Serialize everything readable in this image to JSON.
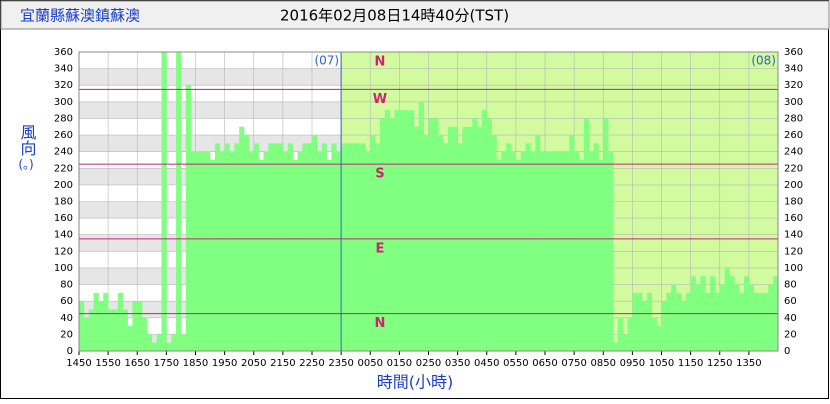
{
  "chart_data": {
    "type": "bar",
    "station": "宜蘭縣蘇澳鎮蘇澳",
    "title": "2016年02月08日14時40分(TST)",
    "y_label": "風向",
    "y_unit": "(。)",
    "x_label": "時間(小時)",
    "day_labels": [
      "(07)",
      "(08)"
    ],
    "color": "#80ff80",
    "ylim": [
      0,
      360
    ],
    "yticks": [
      0,
      20,
      40,
      60,
      80,
      100,
      120,
      140,
      160,
      180,
      200,
      220,
      240,
      260,
      280,
      300,
      320,
      340,
      360
    ],
    "grid": true,
    "compass_lines": [
      {
        "value": 360,
        "label": "N"
      },
      {
        "value": 315,
        "label": "W"
      },
      {
        "value": 225,
        "label": "S"
      },
      {
        "value": 135,
        "label": "E"
      },
      {
        "value": 45,
        "label": "N"
      }
    ],
    "categories": [
      "1450",
      null,
      null,
      null,
      null,
      null,
      "1550",
      null,
      null,
      null,
      null,
      null,
      "1650",
      null,
      null,
      null,
      null,
      null,
      "1750",
      null,
      null,
      null,
      null,
      null,
      "1850",
      null,
      null,
      null,
      null,
      null,
      "1950",
      null,
      null,
      null,
      null,
      null,
      "2050",
      null,
      null,
      null,
      null,
      null,
      "2150",
      null,
      null,
      null,
      null,
      null,
      "2250",
      null,
      null,
      null,
      null,
      null,
      "2350",
      null,
      null,
      null,
      null,
      null,
      "0050",
      null,
      null,
      null,
      null,
      null,
      "0150",
      null,
      null,
      null,
      null,
      null,
      "0250",
      null,
      null,
      null,
      null,
      null,
      "0350",
      null,
      null,
      null,
      null,
      null,
      "0450",
      null,
      null,
      null,
      null,
      null,
      "0550",
      null,
      null,
      null,
      null,
      null,
      "0650",
      null,
      null,
      null,
      null,
      null,
      "0750",
      null,
      null,
      null,
      null,
      null,
      "0850",
      null,
      null,
      null,
      null,
      null,
      "0950",
      null,
      null,
      null,
      null,
      null,
      "1050",
      null,
      null,
      null,
      null,
      null,
      "1150",
      null,
      null,
      null,
      null,
      null,
      "1250",
      null,
      null,
      null,
      null,
      null,
      "1350",
      null,
      null,
      null,
      null,
      null
    ],
    "values": [
      60,
      40,
      50,
      70,
      60,
      70,
      50,
      50,
      70,
      50,
      30,
      60,
      60,
      40,
      20,
      10,
      20,
      360,
      10,
      20,
      360,
      20,
      320,
      240,
      240,
      240,
      240,
      230,
      250,
      240,
      250,
      240,
      250,
      270,
      260,
      240,
      250,
      230,
      240,
      250,
      250,
      250,
      240,
      250,
      230,
      240,
      250,
      250,
      260,
      240,
      250,
      230,
      250,
      240,
      250,
      250,
      250,
      250,
      250,
      240,
      260,
      250,
      280,
      290,
      280,
      290,
      290,
      290,
      290,
      270,
      300,
      260,
      280,
      280,
      260,
      250,
      270,
      270,
      250,
      270,
      270,
      280,
      270,
      290,
      280,
      260,
      230,
      240,
      250,
      240,
      230,
      240,
      250,
      240,
      260,
      240,
      240,
      240,
      240,
      240,
      240,
      260,
      240,
      230,
      280,
      240,
      250,
      230,
      280,
      240,
      10,
      40,
      20,
      40,
      70,
      70,
      60,
      70,
      40,
      30,
      60,
      70,
      80,
      70,
      60,
      70,
      90,
      80,
      90,
      70,
      90,
      70,
      80,
      100,
      90,
      80,
      70,
      90,
      80,
      70,
      70,
      70,
      80,
      90
    ]
  }
}
